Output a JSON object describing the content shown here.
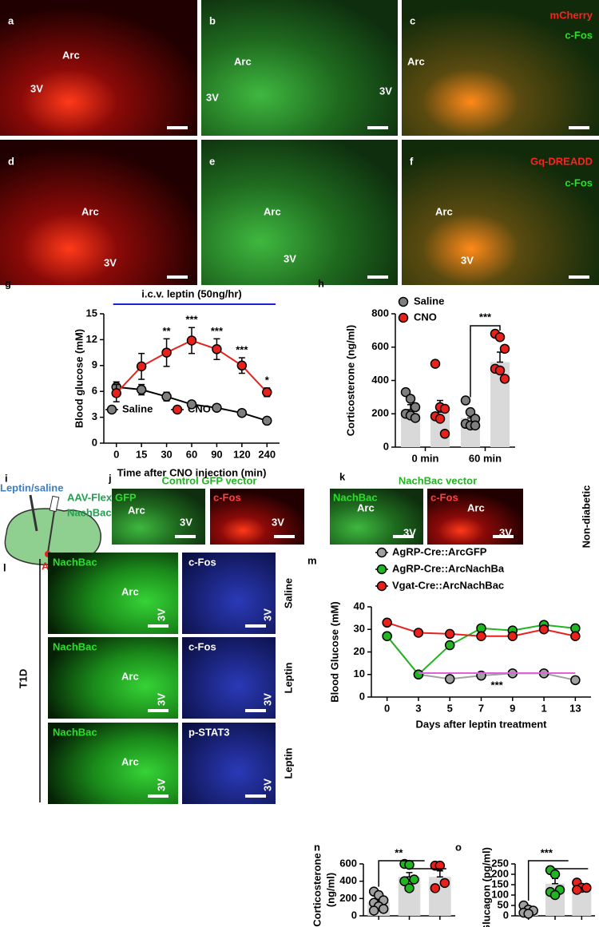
{
  "image_panels": [
    {
      "letter": "a",
      "labels": [
        "Arc",
        "3V"
      ]
    },
    {
      "letter": "b",
      "labels": [
        "Arc",
        "3V"
      ]
    },
    {
      "letter": "c",
      "channels": [
        "mCherry",
        "c-Fos"
      ],
      "labels": [
        "Arc",
        "3V"
      ]
    },
    {
      "letter": "d",
      "labels": [
        "Arc",
        "3V"
      ]
    },
    {
      "letter": "e",
      "labels": [
        "Arc",
        "3V"
      ]
    },
    {
      "letter": "f",
      "channels": [
        "Gq-DREADD",
        "c-Fos"
      ],
      "labels": [
        "Arc",
        "3V"
      ]
    }
  ],
  "schematic": {
    "letter": "i",
    "injection": "Leptin/saline",
    "virus": [
      "AAV-Flex-",
      "NachBac"
    ],
    "target": "Arc"
  },
  "vector_panels": [
    {
      "letter": "j",
      "heading": "Control GFP vector",
      "images": [
        {
          "label": "GFP",
          "texts": [
            "Arc",
            "3V"
          ]
        },
        {
          "label": "c-Fos",
          "texts": [
            "3V"
          ]
        }
      ]
    },
    {
      "letter": "k",
      "heading": "NachBac vector",
      "side": "Non-diabetic",
      "images": [
        {
          "label": "NachBac",
          "texts": [
            "Arc",
            "3V"
          ]
        },
        {
          "label": "c-Fos",
          "texts": [
            "Arc",
            "3V"
          ]
        }
      ]
    }
  ],
  "t1d_panel": {
    "letter": "l",
    "side": "T1D",
    "rows": [
      {
        "condition": "Saline",
        "images": [
          {
            "label": "NachBac",
            "texts": [
              "Arc",
              "3V"
            ]
          },
          {
            "label": "c-Fos",
            "texts": [
              "3V"
            ]
          }
        ]
      },
      {
        "condition": "Leptin",
        "images": [
          {
            "label": "NachBac",
            "texts": [
              "Arc",
              "3V"
            ]
          },
          {
            "label": "c-Fos",
            "texts": [
              "3V"
            ]
          }
        ]
      },
      {
        "condition": "Leptin",
        "images": [
          {
            "label": "NachBac",
            "texts": [
              "Arc",
              "3V"
            ]
          },
          {
            "label": "p-STAT3",
            "texts": [
              "3V"
            ]
          }
        ]
      }
    ]
  },
  "chart_data": [
    {
      "type": "line",
      "panel": "g",
      "y_label": [
        "Blood glucose (mM)"
      ],
      "x_label": "Time after CNO injection (min)",
      "annotation": "i.c.v. leptin (50ng/hr)",
      "categories": [
        "0",
        "15",
        "30",
        "60",
        "90",
        "120",
        "240"
      ],
      "series": [
        {
          "name": "Saline",
          "color": "#7f7f7f",
          "values": [
            6.5,
            6.2,
            5.4,
            4.5,
            4.1,
            3.5,
            2.6
          ],
          "errors": [
            0.6,
            0.6,
            0.5,
            0.2,
            0.2,
            0.2,
            0.2
          ]
        },
        {
          "name": "CNO",
          "color": "#e8211b",
          "values": [
            5.8,
            8.9,
            10.5,
            11.9,
            10.9,
            9.0,
            5.9
          ],
          "errors": [
            1.0,
            1.5,
            1.6,
            1.5,
            1.2,
            0.9,
            0.5
          ]
        }
      ],
      "significance": [
        null,
        null,
        "**",
        "***",
        "***",
        "***",
        "*"
      ],
      "ylim": [
        0,
        15
      ],
      "yticks": [
        0,
        3,
        6,
        9,
        12,
        15
      ]
    },
    {
      "type": "bar",
      "panel": "h",
      "y_label": [
        "Corticosterone (ng/ml)"
      ],
      "categories": [
        "0 min",
        "60 min"
      ],
      "series": [
        {
          "name": "Saline",
          "color": "#7f7f7f",
          "values": [
            225,
            175
          ],
          "errors": [
            30,
            45
          ],
          "points": [
            [
              330,
              290,
              240,
              200,
              190,
              175
            ],
            [
              280,
              210,
              170,
              140,
              130,
              130
            ]
          ]
        },
        {
          "name": "CNO",
          "color": "#e8211b",
          "values": [
            210,
            510
          ],
          "errors": [
            70,
            60
          ],
          "points": [
            [
              500,
              240,
              230,
              185,
              170,
              80
            ],
            [
              680,
              660,
              590,
              470,
              460,
              410
            ]
          ]
        }
      ],
      "significance": "***",
      "ylim": [
        0,
        800
      ],
      "yticks": [
        0,
        200,
        400,
        600,
        800
      ]
    },
    {
      "type": "line",
      "panel": "m",
      "y_label": [
        "Blood Glucose (mM)"
      ],
      "x_label": "Days after leptin treatment",
      "categories": [
        "0",
        "3",
        "5",
        "7",
        "9",
        "1",
        "13"
      ],
      "series": [
        {
          "name": "AgRP-Cre::ArcGFP",
          "color": "#a0a0a0",
          "values": [
            27,
            10,
            8,
            9.5,
            10.5,
            10.5,
            7.5
          ]
        },
        {
          "name": "AgRP-Cre::ArcNachBa",
          "color": "#22b522",
          "values": [
            27,
            10,
            23,
            30.5,
            29.5,
            32,
            30.5
          ]
        },
        {
          "name": "Vgat-Cre::ArcNachBac",
          "color": "#e8211b",
          "values": [
            33,
            28.5,
            28,
            27,
            27,
            30,
            27
          ]
        }
      ],
      "significance": "***",
      "ylim": [
        0,
        40
      ],
      "yticks": [
        0,
        10,
        20,
        30,
        40
      ]
    },
    {
      "type": "bar",
      "panel": "n",
      "y_label": [
        "Corticosterone",
        "(ng/ml)"
      ],
      "categories": [
        null,
        null,
        null
      ],
      "values": [
        160,
        450,
        450
      ],
      "errors": [
        30,
        50,
        70
      ],
      "colors": [
        "#a0a0a0",
        "#22b522",
        "#e8211b"
      ],
      "points": [
        [
          280,
          240,
          180,
          150,
          110,
          80,
          60
        ],
        [
          600,
          590,
          420,
          400,
          320
        ],
        [
          580,
          580,
          380,
          320
        ]
      ],
      "significance": "**",
      "ylim": [
        0,
        600
      ],
      "yticks": [
        0,
        200,
        400,
        600
      ]
    },
    {
      "type": "bar",
      "panel": "o",
      "y_label": [
        "Glucagon (pg/ml)"
      ],
      "categories": [
        null,
        null,
        null
      ],
      "values": [
        25,
        155,
        140
      ],
      "errors": [
        8,
        25,
        12
      ],
      "colors": [
        "#a0a0a0",
        "#22b522",
        "#e8211b"
      ],
      "points": [
        [
          50,
          30,
          25,
          15,
          10
        ],
        [
          220,
          200,
          125,
          115,
          100
        ],
        [
          160,
          135,
          135,
          125
        ]
      ],
      "significance": "***",
      "ylim": [
        0,
        250
      ],
      "yticks": [
        0,
        50,
        100,
        150,
        200,
        250
      ]
    }
  ]
}
